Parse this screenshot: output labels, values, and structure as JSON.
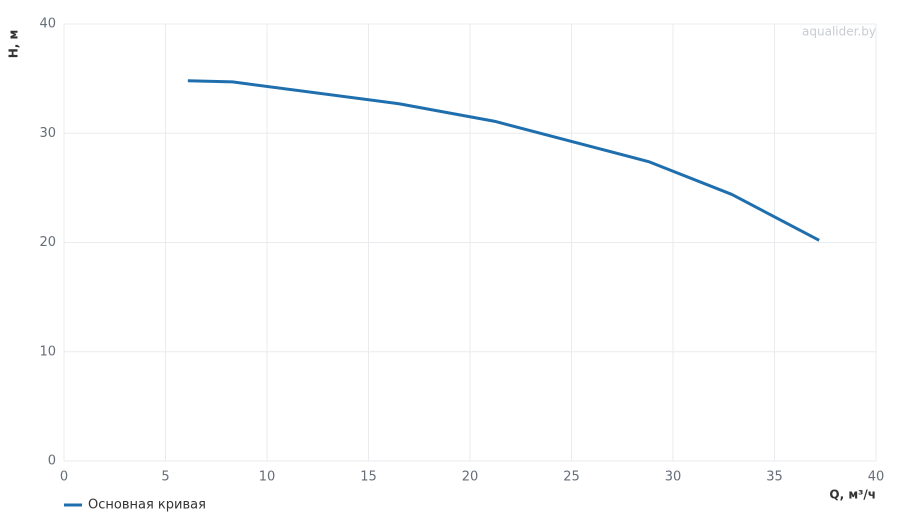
{
  "chart_data": {
    "type": "line",
    "ylabel": "H, м",
    "xlabel": "Q, м³/ч",
    "watermark": "aqualider.by",
    "x": [
      6.1,
      8.3,
      16.5,
      21.2,
      28.8,
      32.9,
      37.2
    ],
    "series": [
      {
        "name": "Основная кривая",
        "color": "#1f6fae",
        "values": [
          34.8,
          34.7,
          32.7,
          31.1,
          27.4,
          24.4,
          20.2
        ]
      }
    ],
    "xlim": [
      0,
      40
    ],
    "xticks": [
      0,
      5,
      10,
      15,
      20,
      25,
      30,
      35,
      40
    ],
    "ylim": [
      0,
      40
    ],
    "yticks": [
      0,
      10,
      20,
      30,
      40
    ],
    "grid": true,
    "legend": "bottom-left"
  }
}
